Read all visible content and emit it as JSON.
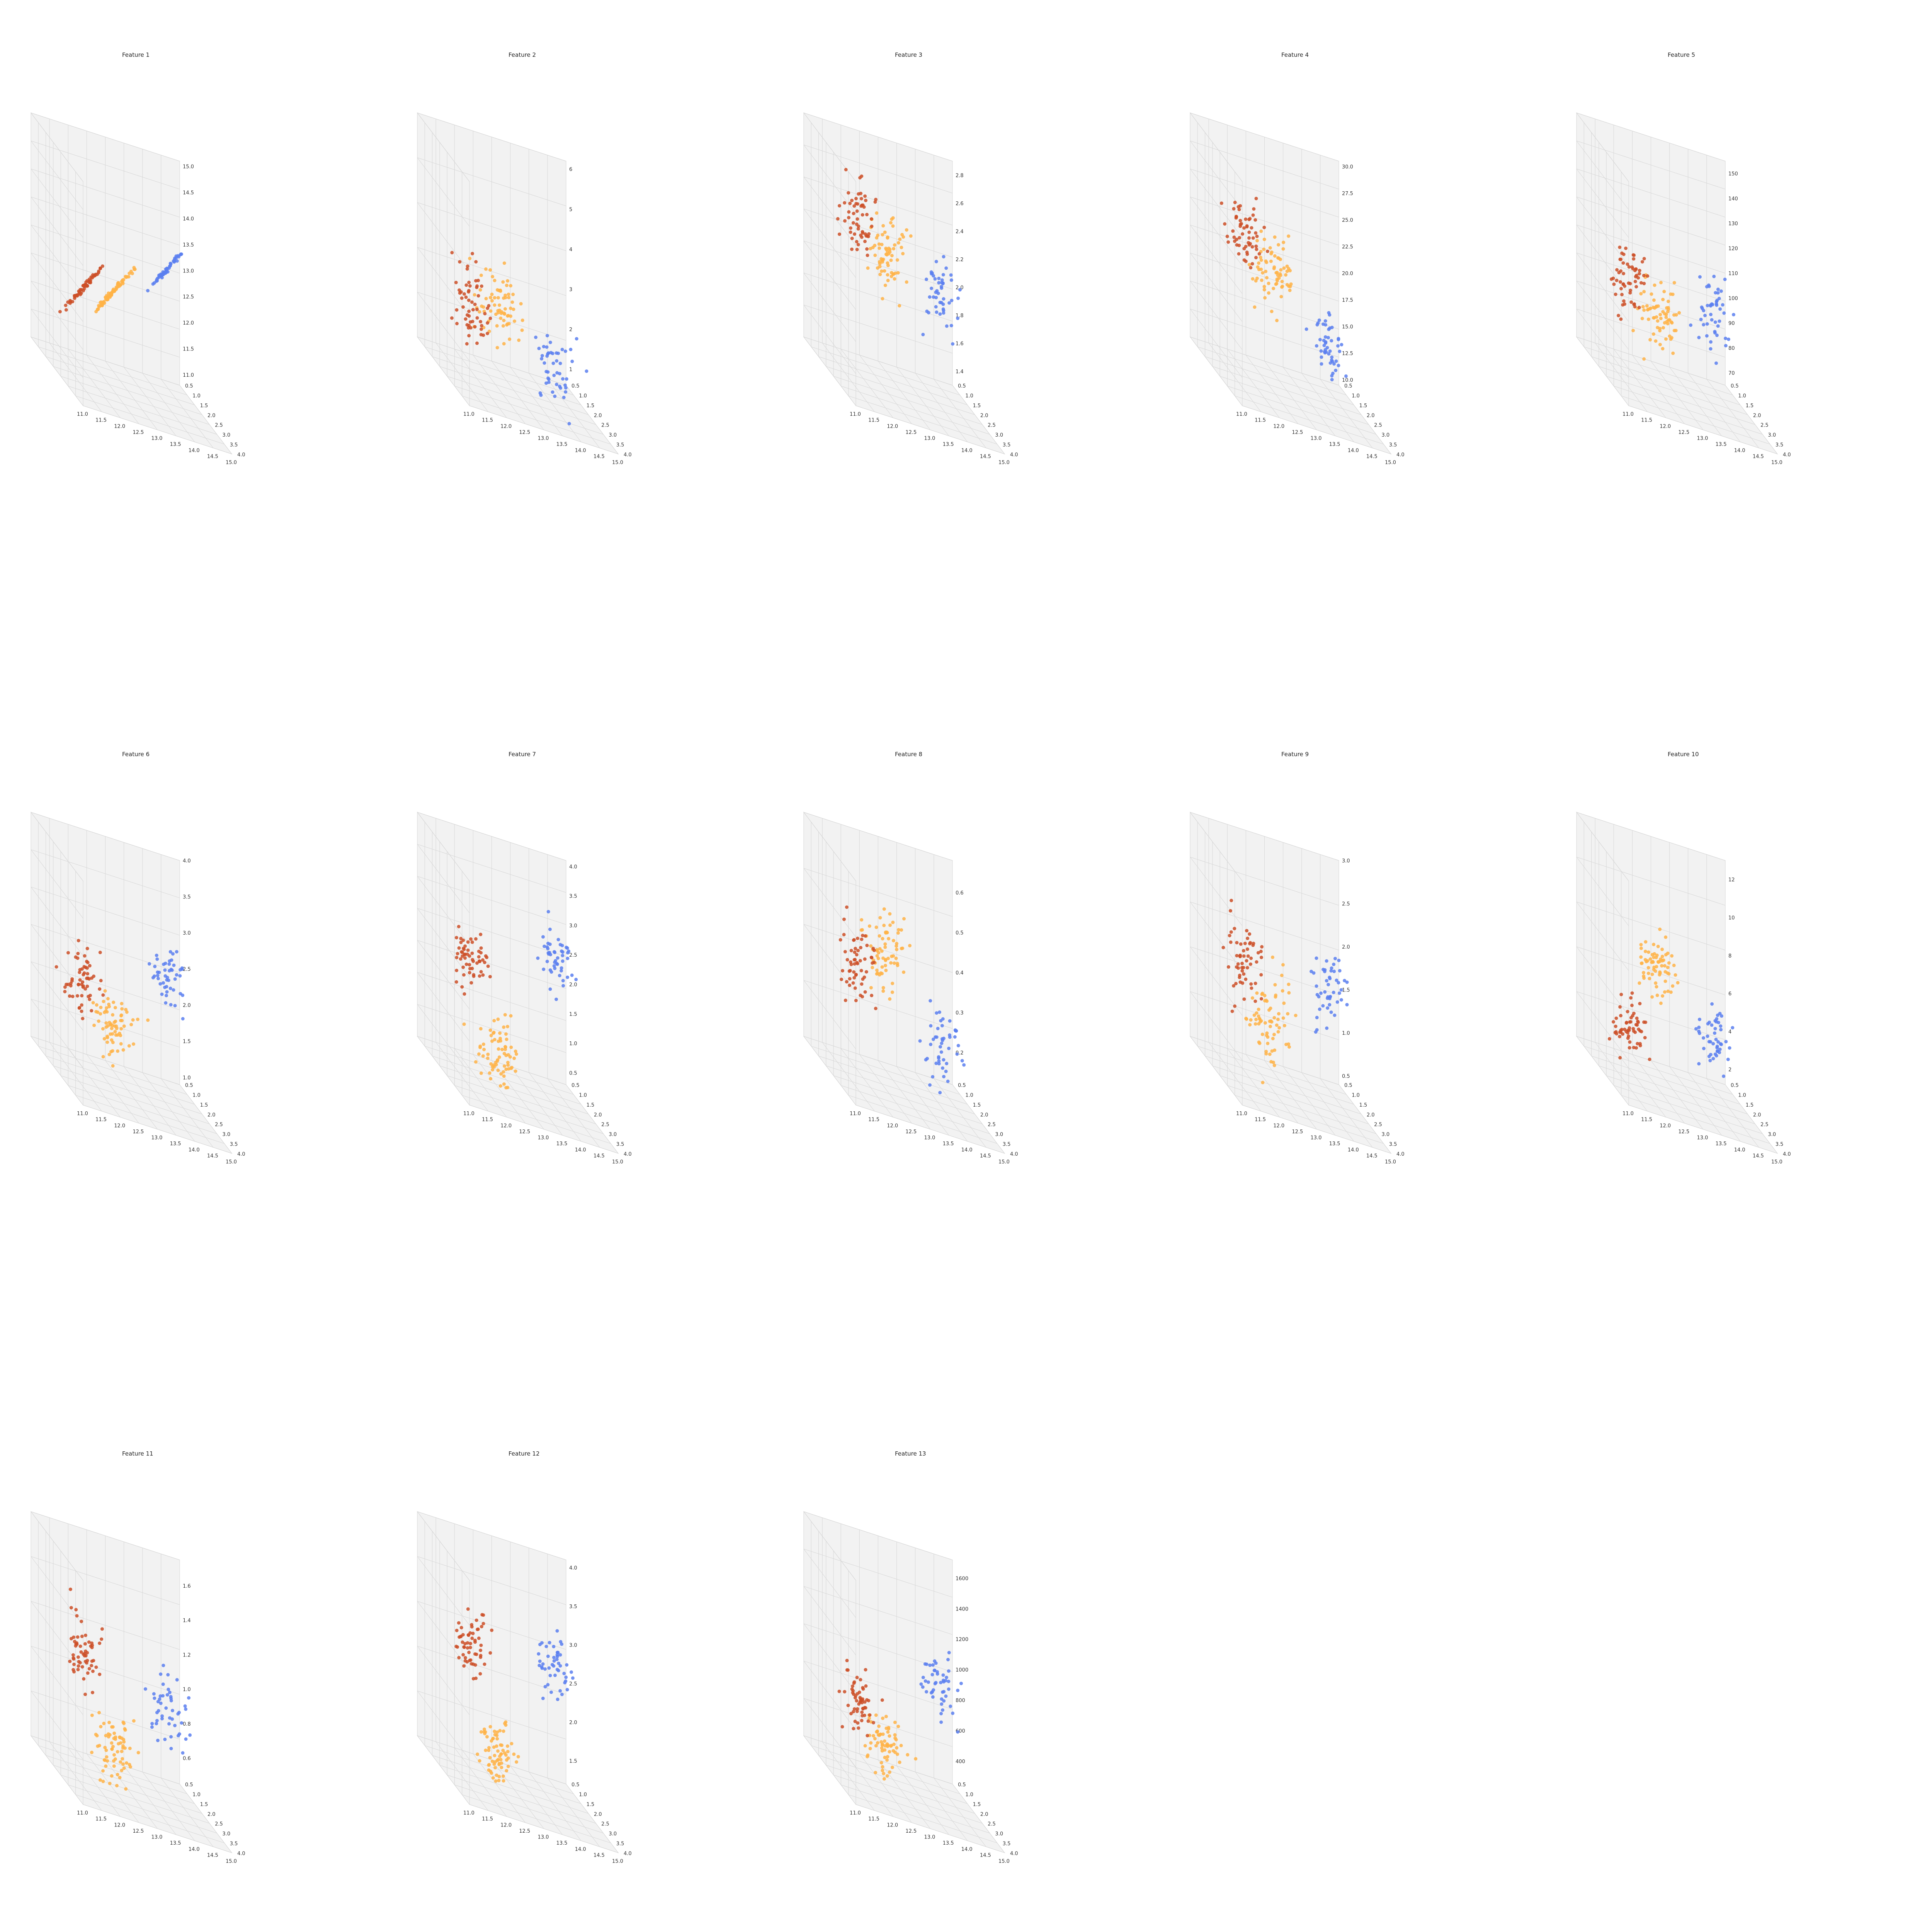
{
  "colors": {
    "class_0": "#cd4f27",
    "class_1": "#ffb347",
    "class_2": "#5b7ff0",
    "pane_fill": "#f2f2f2",
    "pane_edge": "#c8c8c8",
    "grid": "#d6d6d6"
  },
  "chart_data": [
    {
      "type": "scatter",
      "title": "Feature 1",
      "x_ticks": [
        "11.0",
        "11.5",
        "12.0",
        "12.5",
        "13.0",
        "13.5",
        "14.0",
        "14.5",
        "15.0"
      ],
      "y_ticks": [
        "0.5",
        "1.0",
        "1.5",
        "2.0",
        "2.5",
        "3.0",
        "3.5",
        "4.0"
      ],
      "z_ticks": [
        "11.0",
        "11.5",
        "12.0",
        "12.5",
        "13.0",
        "13.5",
        "14.0",
        "14.5",
        "15.0"
      ],
      "z_range": [
        10.8,
        15.1
      ],
      "z_mode": "identity"
    },
    {
      "type": "scatter",
      "title": "Feature 2",
      "x_ticks": [
        "11.0",
        "11.5",
        "12.0",
        "12.5",
        "13.0",
        "13.5",
        "14.0",
        "14.5",
        "15.0"
      ],
      "y_ticks": [
        "0.5",
        "1.0",
        "1.5",
        "2.0",
        "2.5",
        "3.0",
        "3.5",
        "4.0"
      ],
      "z_ticks": [
        "1",
        "2",
        "3",
        "4",
        "5",
        "6"
      ],
      "z_range": [
        0.6,
        6.2
      ],
      "class_means": [
        2.0,
        2.6,
        1.8
      ],
      "spread": 0.9
    },
    {
      "type": "scatter",
      "title": "Feature 3",
      "x_ticks": [
        "11.0",
        "11.5",
        "12.0",
        "12.5",
        "13.0",
        "13.5",
        "14.0",
        "14.5",
        "15.0"
      ],
      "y_ticks": [
        "0.5",
        "1.0",
        "1.5",
        "2.0",
        "2.5",
        "3.0",
        "3.5",
        "4.0"
      ],
      "z_ticks": [
        "1.4",
        "1.6",
        "1.8",
        "2.0",
        "2.2",
        "2.4",
        "2.6",
        "2.8"
      ],
      "z_range": [
        1.3,
        2.9
      ],
      "class_means": [
        2.35,
        2.25,
        2.2
      ],
      "spread": 0.25
    },
    {
      "type": "scatter",
      "title": "Feature 4",
      "x_ticks": [
        "11.0",
        "11.5",
        "12.0",
        "12.5",
        "13.0",
        "13.5",
        "14.0",
        "14.5",
        "15.0"
      ],
      "y_ticks": [
        "0.5",
        "1.0",
        "1.5",
        "2.0",
        "2.5",
        "3.0",
        "3.5",
        "4.0"
      ],
      "z_ticks": [
        "10.0",
        "12.5",
        "15.0",
        "17.5",
        "20.0",
        "22.5",
        "25.0",
        "27.5",
        "30.0"
      ],
      "z_range": [
        9.5,
        30.5
      ],
      "class_means": [
        21.5,
        20.0,
        16.5
      ],
      "spread": 3.0
    },
    {
      "type": "scatter",
      "title": "Feature 5",
      "x_ticks": [
        "11.0",
        "11.5",
        "12.0",
        "12.5",
        "13.0",
        "13.5",
        "14.0",
        "14.5",
        "15.0"
      ],
      "y_ticks": [
        "0.5",
        "1.0",
        "1.5",
        "2.0",
        "2.5",
        "3.0",
        "3.5",
        "4.0"
      ],
      "z_ticks": [
        "70",
        "80",
        "90",
        "100",
        "110",
        "120",
        "130",
        "140",
        "150"
      ],
      "z_range": [
        65,
        155
      ],
      "class_means": [
        99,
        94,
        106
      ],
      "spread": 13
    },
    {
      "type": "scatter",
      "title": "Feature 6",
      "x_ticks": [
        "11.0",
        "11.5",
        "12.0",
        "12.5",
        "13.0",
        "13.5",
        "14.0",
        "14.5",
        "15.0"
      ],
      "y_ticks": [
        "0.5",
        "1.0",
        "1.5",
        "2.0",
        "2.5",
        "3.0",
        "3.5",
        "4.0"
      ],
      "z_ticks": [
        "1.0",
        "1.5",
        "2.0",
        "2.5",
        "3.0",
        "3.5",
        "4.0"
      ],
      "z_range": [
        0.9,
        4.0
      ],
      "class_means": [
        2.0,
        1.7,
        2.85
      ],
      "spread": 0.45
    },
    {
      "type": "scatter",
      "title": "Feature 7",
      "x_ticks": [
        "11.0",
        "11.5",
        "12.0",
        "12.5",
        "13.0",
        "13.5",
        "14.0",
        "14.5",
        "15.0"
      ],
      "y_ticks": [
        "0.5",
        "1.0",
        "1.5",
        "2.0",
        "2.5",
        "3.0",
        "3.5",
        "4.0"
      ],
      "z_ticks": [
        "0.5",
        "1.0",
        "1.5",
        "2.0",
        "2.5",
        "3.0",
        "3.5",
        "4.0"
      ],
      "z_range": [
        0.3,
        4.1
      ],
      "class_means": [
        2.0,
        0.8,
        2.95
      ],
      "spread": 0.55
    },
    {
      "type": "scatter",
      "title": "Feature 8",
      "x_ticks": [
        "11.0",
        "11.5",
        "12.0",
        "12.5",
        "13.0",
        "13.5",
        "14.0",
        "14.5",
        "15.0"
      ],
      "y_ticks": [
        "0.5",
        "1.0",
        "1.5",
        "2.0",
        "2.5",
        "3.0",
        "3.5",
        "4.0"
      ],
      "z_ticks": [
        "0.2",
        "0.3",
        "0.4",
        "0.5",
        "0.6"
      ],
      "z_range": [
        0.12,
        0.68
      ],
      "class_means": [
        0.36,
        0.45,
        0.29
      ],
      "spread": 0.09
    },
    {
      "type": "scatter",
      "title": "Feature 9",
      "x_ticks": [
        "11.0",
        "11.5",
        "12.0",
        "12.5",
        "13.0",
        "13.5",
        "14.0",
        "14.5",
        "15.0"
      ],
      "y_ticks": [
        "0.5",
        "1.0",
        "1.5",
        "2.0",
        "2.5",
        "3.0",
        "3.5",
        "4.0"
      ],
      "z_ticks": [
        "0.5",
        "1.0",
        "1.5",
        "2.0",
        "2.5",
        "3.0"
      ],
      "z_range": [
        0.4,
        3.0
      ],
      "class_means": [
        1.6,
        1.15,
        1.9
      ],
      "spread": 0.45
    },
    {
      "type": "scatter",
      "title": "Feature 10",
      "x_ticks": [
        "11.0",
        "11.5",
        "12.0",
        "12.5",
        "13.0",
        "13.5",
        "14.0",
        "14.5",
        "15.0"
      ],
      "y_ticks": [
        "0.5",
        "1.0",
        "1.5",
        "2.0",
        "2.5",
        "3.0",
        "3.5",
        "4.0"
      ],
      "z_ticks": [
        "2",
        "4",
        "6",
        "8",
        "10",
        "12"
      ],
      "z_range": [
        1.2,
        13.0
      ],
      "class_means": [
        3.1,
        7.4,
        5.5
      ],
      "spread": 1.5
    },
    {
      "type": "scatter",
      "title": "Feature 11",
      "x_ticks": [
        "11.0",
        "11.5",
        "12.0",
        "12.5",
        "13.0",
        "13.5",
        "14.0",
        "14.5",
        "15.0"
      ],
      "y_ticks": [
        "0.5",
        "1.0",
        "1.5",
        "2.0",
        "2.5",
        "3.0",
        "3.5",
        "4.0"
      ],
      "z_ticks": [
        "0.6",
        "0.8",
        "1.0",
        "1.2",
        "1.4",
        "1.6"
      ],
      "z_range": [
        0.45,
        1.75
      ],
      "class_means": [
        1.06,
        0.68,
        1.06
      ],
      "spread": 0.2
    },
    {
      "type": "scatter",
      "title": "Feature 12",
      "x_ticks": [
        "11.0",
        "11.5",
        "12.0",
        "12.5",
        "13.0",
        "13.5",
        "14.0",
        "14.5",
        "15.0"
      ],
      "y_ticks": [
        "0.5",
        "1.0",
        "1.5",
        "2.0",
        "2.5",
        "3.0",
        "3.5",
        "4.0"
      ],
      "z_ticks": [
        "1.5",
        "2.0",
        "2.5",
        "3.0",
        "3.5",
        "4.0"
      ],
      "z_range": [
        1.2,
        4.1
      ],
      "class_means": [
        2.7,
        1.6,
        3.15
      ],
      "spread": 0.4
    },
    {
      "type": "scatter",
      "title": "Feature 13",
      "x_ticks": [
        "11.0",
        "11.5",
        "12.0",
        "12.5",
        "13.0",
        "13.5",
        "14.0",
        "14.5",
        "15.0"
      ],
      "y_ticks": [
        "0.5",
        "1.0",
        "1.5",
        "2.0",
        "2.5",
        "3.0",
        "3.5",
        "4.0"
      ],
      "z_ticks": [
        "400",
        "600",
        "800",
        "1000",
        "1200",
        "1400",
        "1600"
      ],
      "z_range": [
        250,
        1720
      ],
      "class_means": [
        630,
        520,
        1120
      ],
      "spread": 190
    }
  ]
}
